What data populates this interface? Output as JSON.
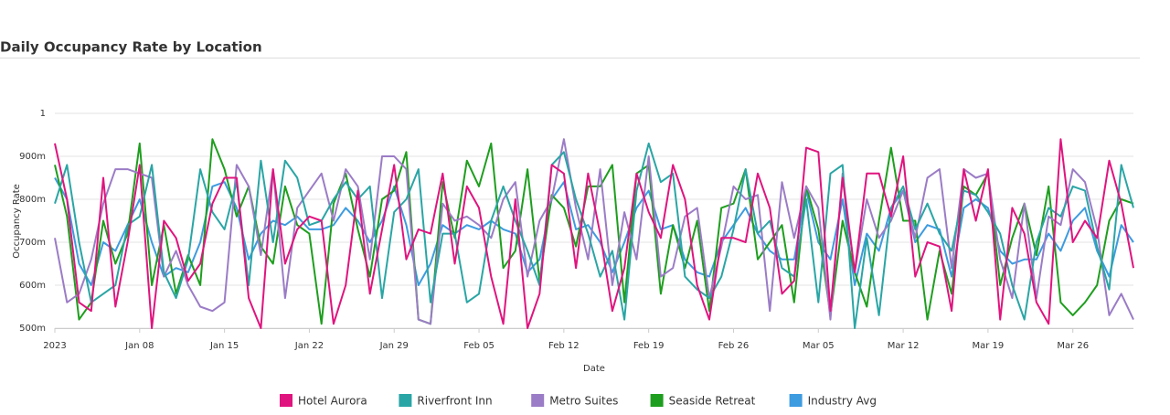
{
  "chart_data": {
    "type": "line",
    "title": "Daily Occupancy Rate by Location",
    "x_label": "Date",
    "y_label": "Occupancy Rate",
    "x": [
      "2023-01-01",
      "2023-01-02",
      "2023-01-03",
      "2023-01-04",
      "2023-01-05",
      "2023-01-06",
      "2023-01-07",
      "2023-01-08",
      "2023-01-09",
      "2023-01-10",
      "2023-01-11",
      "2023-01-12",
      "2023-01-13",
      "2023-01-14",
      "2023-01-15",
      "2023-01-16",
      "2023-01-17",
      "2023-01-18",
      "2023-01-19",
      "2023-01-20",
      "2023-01-21",
      "2023-01-22",
      "2023-01-23",
      "2023-01-24",
      "2023-01-25",
      "2023-01-26",
      "2023-01-27",
      "2023-01-28",
      "2023-01-29",
      "2023-01-30",
      "2023-01-31",
      "2023-02-01",
      "2023-02-02",
      "2023-02-03",
      "2023-02-04",
      "2023-02-05",
      "2023-02-06",
      "2023-02-07",
      "2023-02-08",
      "2023-02-09",
      "2023-02-10",
      "2023-02-11",
      "2023-02-12",
      "2023-02-13",
      "2023-02-14",
      "2023-02-15",
      "2023-02-16",
      "2023-02-17",
      "2023-02-18",
      "2023-02-19",
      "2023-02-20",
      "2023-02-21",
      "2023-02-22",
      "2023-02-23",
      "2023-02-24",
      "2023-02-25",
      "2023-02-26",
      "2023-02-27",
      "2023-02-28",
      "2023-03-01",
      "2023-03-02",
      "2023-03-03",
      "2023-03-04",
      "2023-03-05",
      "2023-03-06",
      "2023-03-07",
      "2023-03-08",
      "2023-03-09",
      "2023-03-10",
      "2023-03-11",
      "2023-03-12",
      "2023-03-13",
      "2023-03-14",
      "2023-03-15",
      "2023-03-16",
      "2023-03-17",
      "2023-03-18",
      "2023-03-19",
      "2023-03-20",
      "2023-03-21",
      "2023-03-22",
      "2023-03-23",
      "2023-03-24",
      "2023-03-25",
      "2023-03-26",
      "2023-03-27",
      "2023-03-28",
      "2023-03-29",
      "2023-03-30",
      "2023-03-31"
    ],
    "xlim": [
      "2023-01-01",
      "2023-03-31"
    ],
    "xticks": [
      {
        "value": "2023-01-01",
        "label": "2023"
      },
      {
        "value": "2023-01-08",
        "label": "Jan 08"
      },
      {
        "value": "2023-01-15",
        "label": "Jan 15"
      },
      {
        "value": "2023-01-22",
        "label": "Jan 22"
      },
      {
        "value": "2023-01-29",
        "label": "Jan 29"
      },
      {
        "value": "2023-02-05",
        "label": "Feb 05"
      },
      {
        "value": "2023-02-12",
        "label": "Feb 12"
      },
      {
        "value": "2023-02-19",
        "label": "Feb 19"
      },
      {
        "value": "2023-02-26",
        "label": "Feb 26"
      },
      {
        "value": "2023-03-05",
        "label": "Mar 05"
      },
      {
        "value": "2023-03-12",
        "label": "Mar 12"
      },
      {
        "value": "2023-03-19",
        "label": "Mar 19"
      },
      {
        "value": "2023-03-26",
        "label": "Mar 26"
      }
    ],
    "ylim": [
      0.5,
      1
    ],
    "yticks": [
      {
        "value": 0.5,
        "label": "500m"
      },
      {
        "value": 0.6,
        "label": "600m"
      },
      {
        "value": 0.7,
        "label": "700m"
      },
      {
        "value": 0.8,
        "label": "800m"
      },
      {
        "value": 0.9,
        "label": "900m"
      },
      1
    ],
    "grid": true,
    "legend": "bottom",
    "series": [
      {
        "name": "Hotel Aurora",
        "color": "#e0147f",
        "values": [
          0.93,
          0.8,
          0.56,
          0.54,
          0.85,
          0.55,
          0.7,
          0.88,
          0.5,
          0.75,
          0.71,
          0.61,
          0.65,
          0.79,
          0.85,
          0.85,
          0.57,
          0.5,
          0.87,
          0.65,
          0.73,
          0.76,
          0.75,
          0.51,
          0.6,
          0.82,
          0.58,
          0.73,
          0.88,
          0.66,
          0.73,
          0.72,
          0.86,
          0.65,
          0.83,
          0.78,
          0.62,
          0.51,
          0.8,
          0.5,
          0.58,
          0.88,
          0.86,
          0.64,
          0.86,
          0.72,
          0.54,
          0.64,
          0.86,
          0.77,
          0.71,
          0.88,
          0.8,
          0.6,
          0.52,
          0.71,
          0.71,
          0.7,
          0.86,
          0.78,
          0.58,
          0.61,
          0.92,
          0.91,
          0.54,
          0.85,
          0.63,
          0.86,
          0.86,
          0.76,
          0.9,
          0.62,
          0.7,
          0.69,
          0.54,
          0.87,
          0.75,
          0.87,
          0.52,
          0.78,
          0.72,
          0.56,
          0.51,
          0.94,
          0.7,
          0.75,
          0.71,
          0.89,
          0.79,
          0.64
        ]
      },
      {
        "name": "Riverfront Inn",
        "color": "#2aa5a5",
        "values": [
          0.79,
          0.88,
          0.7,
          0.56,
          0.58,
          0.6,
          0.74,
          0.76,
          0.88,
          0.63,
          0.57,
          0.66,
          0.87,
          0.77,
          0.73,
          0.84,
          0.6,
          0.89,
          0.7,
          0.89,
          0.85,
          0.74,
          0.75,
          0.8,
          0.84,
          0.8,
          0.83,
          0.57,
          0.77,
          0.8,
          0.87,
          0.56,
          0.72,
          0.72,
          0.56,
          0.58,
          0.75,
          0.83,
          0.75,
          0.68,
          0.6,
          0.88,
          0.91,
          0.8,
          0.72,
          0.62,
          0.68,
          0.52,
          0.82,
          0.93,
          0.84,
          0.86,
          0.62,
          0.59,
          0.57,
          0.62,
          0.73,
          0.87,
          0.72,
          0.75,
          0.64,
          0.62,
          0.8,
          0.56,
          0.86,
          0.88,
          0.5,
          0.71,
          0.53,
          0.78,
          0.83,
          0.73,
          0.79,
          0.72,
          0.68,
          0.82,
          0.81,
          0.77,
          0.72,
          0.6,
          0.52,
          0.7,
          0.78,
          0.76,
          0.83,
          0.82,
          0.69,
          0.59,
          0.88,
          0.78
        ]
      },
      {
        "name": "Metro Suites",
        "color": "#9b7cc6",
        "values": [
          0.71,
          0.56,
          0.58,
          0.66,
          0.79,
          0.87,
          0.87,
          0.86,
          0.85,
          0.62,
          0.68,
          0.6,
          0.55,
          0.54,
          0.56,
          0.88,
          0.83,
          0.67,
          0.87,
          0.57,
          0.78,
          0.82,
          0.86,
          0.75,
          0.87,
          0.83,
          0.66,
          0.9,
          0.9,
          0.87,
          0.52,
          0.51,
          0.79,
          0.75,
          0.76,
          0.74,
          0.71,
          0.8,
          0.84,
          0.62,
          0.75,
          0.8,
          0.94,
          0.78,
          0.66,
          0.87,
          0.6,
          0.77,
          0.66,
          0.9,
          0.62,
          0.64,
          0.76,
          0.78,
          0.57,
          0.69,
          0.83,
          0.8,
          0.81,
          0.54,
          0.84,
          0.71,
          0.83,
          0.78,
          0.52,
          0.86,
          0.63,
          0.8,
          0.71,
          0.75,
          0.82,
          0.71,
          0.85,
          0.87,
          0.64,
          0.87,
          0.85,
          0.86,
          0.66,
          0.57,
          0.79,
          0.57,
          0.76,
          0.74,
          0.87,
          0.84,
          0.73,
          0.53,
          0.58,
          0.52
        ]
      },
      {
        "name": "Seaside Retreat",
        "color": "#1e9e1e",
        "values": [
          0.88,
          0.76,
          0.52,
          0.56,
          0.75,
          0.65,
          0.72,
          0.93,
          0.6,
          0.74,
          0.58,
          0.67,
          0.6,
          0.94,
          0.87,
          0.76,
          0.83,
          0.69,
          0.65,
          0.83,
          0.74,
          0.72,
          0.51,
          0.79,
          0.86,
          0.73,
          0.62,
          0.8,
          0.82,
          0.91,
          0.52,
          0.51,
          0.84,
          0.71,
          0.89,
          0.83,
          0.93,
          0.64,
          0.68,
          0.87,
          0.61,
          0.81,
          0.78,
          0.69,
          0.83,
          0.83,
          0.88,
          0.56,
          0.86,
          0.88,
          0.58,
          0.74,
          0.64,
          0.75,
          0.54,
          0.78,
          0.79,
          0.87,
          0.66,
          0.7,
          0.74,
          0.56,
          0.83,
          0.73,
          0.53,
          0.75,
          0.63,
          0.55,
          0.75,
          0.92,
          0.75,
          0.75,
          0.52,
          0.68,
          0.58,
          0.83,
          0.81,
          0.86,
          0.6,
          0.71,
          0.79,
          0.67,
          0.83,
          0.56,
          0.53,
          0.56,
          0.6,
          0.75,
          0.8,
          0.79
        ]
      },
      {
        "name": "Industry Avg",
        "color": "#3d9be0",
        "values": [
          0.85,
          0.8,
          0.65,
          0.6,
          0.7,
          0.68,
          0.74,
          0.8,
          0.7,
          0.62,
          0.64,
          0.63,
          0.7,
          0.83,
          0.84,
          0.78,
          0.66,
          0.72,
          0.75,
          0.74,
          0.76,
          0.73,
          0.73,
          0.74,
          0.78,
          0.75,
          0.7,
          0.75,
          0.83,
          0.74,
          0.6,
          0.65,
          0.74,
          0.72,
          0.74,
          0.73,
          0.75,
          0.73,
          0.72,
          0.63,
          0.66,
          0.8,
          0.84,
          0.73,
          0.74,
          0.7,
          0.63,
          0.7,
          0.78,
          0.82,
          0.73,
          0.74,
          0.66,
          0.63,
          0.62,
          0.7,
          0.74,
          0.78,
          0.72,
          0.68,
          0.66,
          0.66,
          0.82,
          0.7,
          0.66,
          0.8,
          0.6,
          0.72,
          0.68,
          0.78,
          0.82,
          0.7,
          0.74,
          0.73,
          0.62,
          0.78,
          0.8,
          0.78,
          0.68,
          0.65,
          0.66,
          0.66,
          0.72,
          0.68,
          0.75,
          0.78,
          0.68,
          0.62,
          0.74,
          0.7
        ]
      }
    ]
  }
}
